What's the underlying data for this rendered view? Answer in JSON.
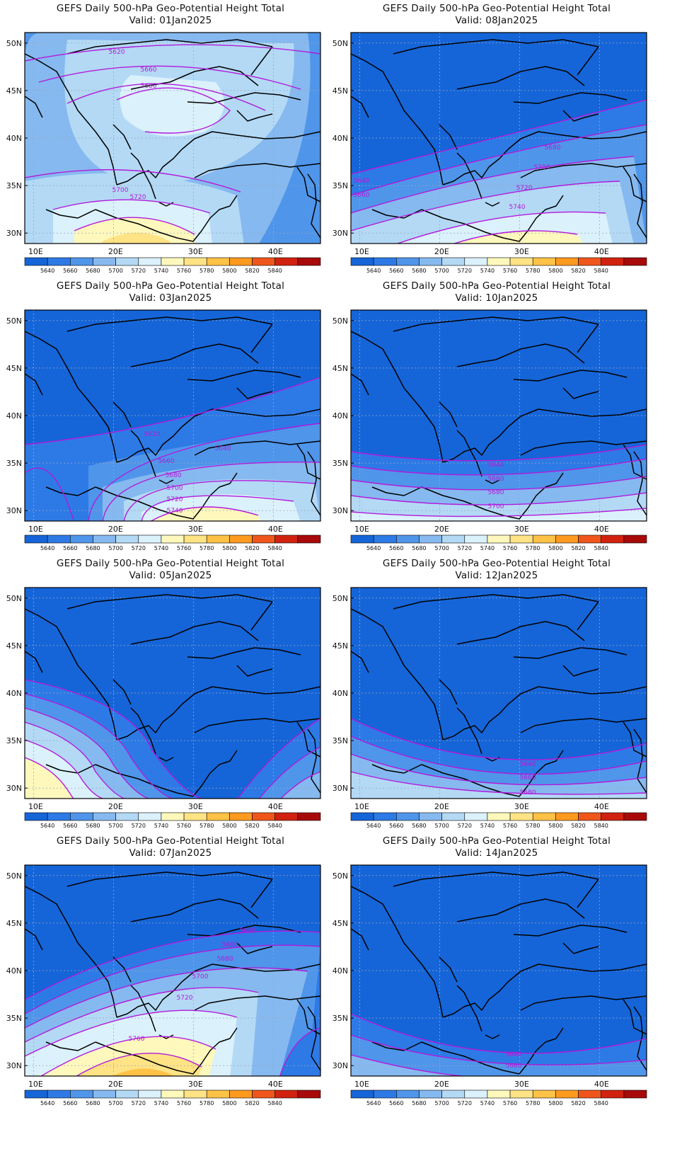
{
  "colors": {
    "levels": [
      "#1565d8",
      "#2d7ae6",
      "#4f95ea",
      "#86b9ef",
      "#b3d9f5",
      "#dbf1fb",
      "#fff8bd",
      "#ffe385",
      "#ffc246",
      "#ff9a1f",
      "#f0561b",
      "#d0220f",
      "#a80a0a"
    ],
    "contour": "#b31adb",
    "contour_label": "#b51ad6",
    "coast": "#000000",
    "gridline": "#9aa8c0",
    "frame": "#000000"
  },
  "colorbar": {
    "labels": [
      "5640",
      "5660",
      "5680",
      "5700",
      "5720",
      "5740",
      "5760",
      "5780",
      "5800",
      "5820",
      "5840"
    ]
  },
  "map": {
    "lon_labels": [
      "10E",
      "20E",
      "30E",
      "40E"
    ],
    "lat_labels": [
      "50N",
      "45N",
      "40N",
      "35N",
      "30N"
    ]
  },
  "panels": [
    {
      "title": "GEFS Daily 500-hPa Geo-Potential Height Total",
      "valid": "Valid: 01Jan2025",
      "contour_labels": [
        "5620",
        "5660",
        "5680",
        "5700",
        "5720"
      ]
    },
    {
      "title": "GEFS Daily 500-hPa Geo-Potential Height Total",
      "valid": "Valid: 08Jan2025",
      "contour_labels": [
        "5680",
        "5700",
        "5720",
        "5740",
        "5640",
        "5660"
      ]
    },
    {
      "title": "GEFS Daily 500-hPa Geo-Potential Height Total",
      "valid": "Valid: 03Jan2025",
      "contour_labels": [
        "5620",
        "5640",
        "5660",
        "5680",
        "5700",
        "5720",
        "5740"
      ]
    },
    {
      "title": "GEFS Daily 500-hPa Geo-Potential Height Total",
      "valid": "Valid: 10Jan2025",
      "contour_labels": [
        "5640",
        "5660",
        "5680",
        "5700"
      ]
    },
    {
      "title": "GEFS Daily 500-hPa Geo-Potential Height Total",
      "valid": "Valid: 05Jan2025",
      "contour_labels": []
    },
    {
      "title": "GEFS Daily 500-hPa Geo-Potential Height Total",
      "valid": "Valid: 12Jan2025",
      "contour_labels": [
        "5640",
        "5660",
        "5680"
      ]
    },
    {
      "title": "GEFS Daily 500-hPa Geo-Potential Height Total",
      "valid": "Valid: 07Jan2025",
      "contour_labels": [
        "5640",
        "5660",
        "5680",
        "5700",
        "5720",
        "5760"
      ]
    },
    {
      "title": "GEFS Daily 500-hPa Geo-Potential Height Total",
      "valid": "Valid: 14Jan2025",
      "contour_labels": [
        "5640",
        "5660"
      ]
    }
  ]
}
